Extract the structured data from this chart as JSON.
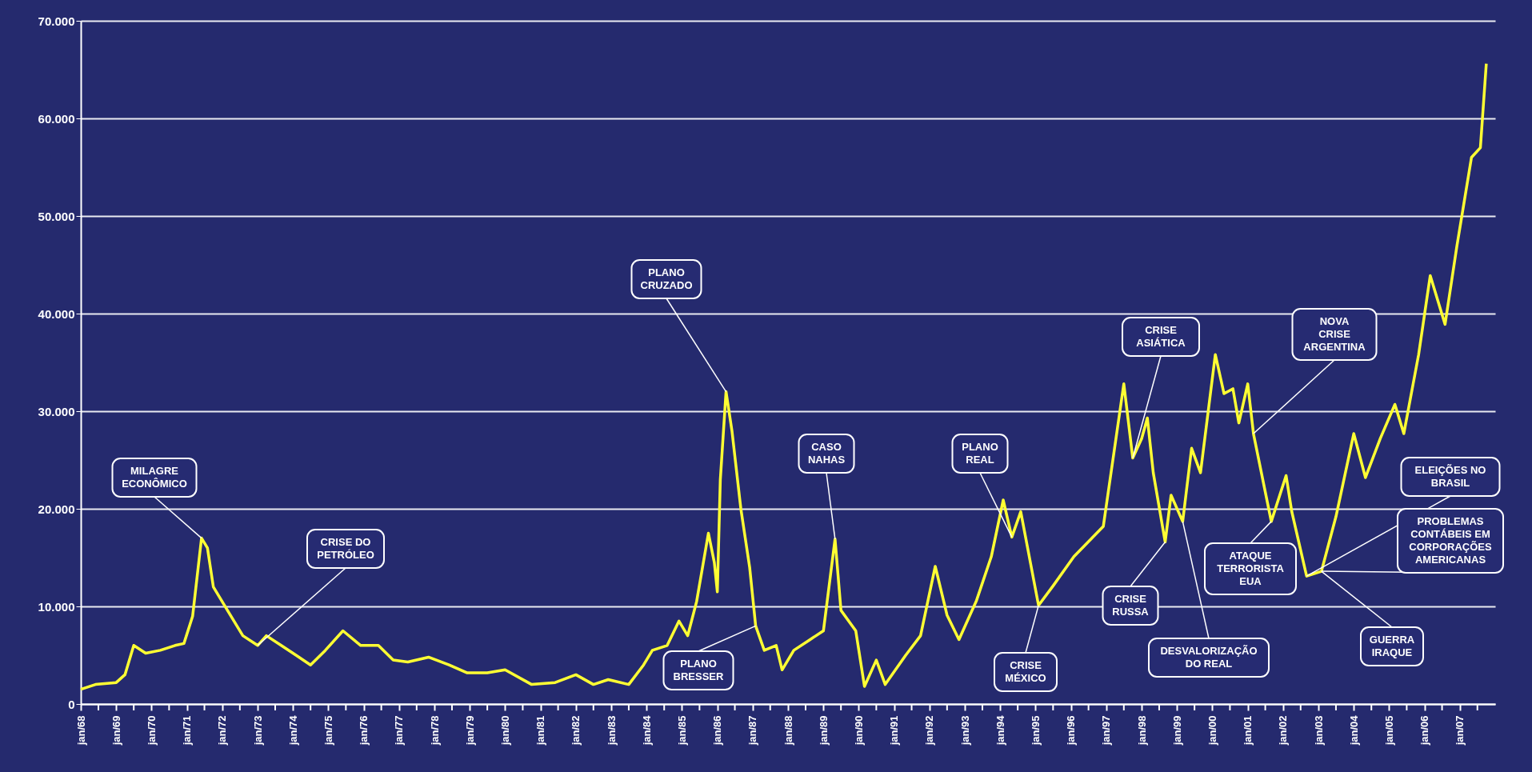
{
  "chart_data": {
    "type": "line",
    "xlim": [
      "1968-01",
      "2008-01"
    ],
    "ylim": [
      0,
      70000
    ],
    "yticks": [
      0,
      {
        "value": 10000,
        "label": "10.000"
      },
      {
        "value": 20000,
        "label": "20.000"
      },
      {
        "value": 30000,
        "label": "30.000"
      },
      {
        "value": 40000,
        "label": "40.000"
      },
      {
        "value": 50000,
        "label": "50.000"
      },
      {
        "value": 60000,
        "label": "60.000"
      },
      {
        "value": 70000,
        "label": "70.000"
      }
    ],
    "xticks": [
      {
        "value": "1968-01",
        "label": "jan/68"
      },
      {
        "value": "1968-07",
        "label": null
      },
      {
        "value": "1969-01",
        "label": "jan/69"
      },
      {
        "value": "1969-07",
        "label": null
      },
      {
        "value": "1970-01",
        "label": "jan/70"
      },
      {
        "value": "1970-07",
        "label": null
      },
      {
        "value": "1971-01",
        "label": "jan/71"
      },
      {
        "value": "1971-07",
        "label": null
      },
      {
        "value": "1972-01",
        "label": "jan/72"
      },
      {
        "value": "1972-07",
        "label": null
      },
      {
        "value": "1973-01",
        "label": "jan/73"
      },
      {
        "value": "1973-07",
        "label": null
      },
      {
        "value": "1974-01",
        "label": "jan/74"
      },
      {
        "value": "1974-07",
        "label": null
      },
      {
        "value": "1975-01",
        "label": "jan/75"
      },
      {
        "value": "1975-07",
        "label": null
      },
      {
        "value": "1976-01",
        "label": "jan/76"
      },
      {
        "value": "1976-07",
        "label": null
      },
      {
        "value": "1977-01",
        "label": "jan/77"
      },
      {
        "value": "1977-07",
        "label": null
      },
      {
        "value": "1978-01",
        "label": "jan/78"
      },
      {
        "value": "1978-07",
        "label": null
      },
      {
        "value": "1979-01",
        "label": "jan/79"
      },
      {
        "value": "1979-07",
        "label": null
      },
      {
        "value": "1980-01",
        "label": "jan/80"
      },
      {
        "value": "1980-07",
        "label": null
      },
      {
        "value": "1981-01",
        "label": "jan/81"
      },
      {
        "value": "1981-07",
        "label": null
      },
      {
        "value": "1982-01",
        "label": "jan/82"
      },
      {
        "value": "1982-07",
        "label": null
      },
      {
        "value": "1983-01",
        "label": "jan/83"
      },
      {
        "value": "1983-07",
        "label": null
      },
      {
        "value": "1984-01",
        "label": "jan/84"
      },
      {
        "value": "1984-07",
        "label": null
      },
      {
        "value": "1985-01",
        "label": "jan/85"
      },
      {
        "value": "1985-07",
        "label": null
      },
      {
        "value": "1986-01",
        "label": "jan/86"
      },
      {
        "value": "1986-07",
        "label": null
      },
      {
        "value": "1987-01",
        "label": "jan/87"
      },
      {
        "value": "1987-07",
        "label": null
      },
      {
        "value": "1988-01",
        "label": "jan/88"
      },
      {
        "value": "1988-07",
        "label": null
      },
      {
        "value": "1989-01",
        "label": "jan/89"
      },
      {
        "value": "1989-07",
        "label": null
      },
      {
        "value": "1990-01",
        "label": "jan/90"
      },
      {
        "value": "1990-07",
        "label": null
      },
      {
        "value": "1991-01",
        "label": "jan/91"
      },
      {
        "value": "1991-07",
        "label": null
      },
      {
        "value": "1992-01",
        "label": "jan/92"
      },
      {
        "value": "1992-07",
        "label": null
      },
      {
        "value": "1993-01",
        "label": "jan/93"
      },
      {
        "value": "1993-07",
        "label": null
      },
      {
        "value": "1994-01",
        "label": "jan/94"
      },
      {
        "value": "1994-07",
        "label": null
      },
      {
        "value": "1995-01",
        "label": "jan/95"
      },
      {
        "value": "1995-07",
        "label": null
      },
      {
        "value": "1996-01",
        "label": "jan/96"
      },
      {
        "value": "1996-07",
        "label": null
      },
      {
        "value": "1997-01",
        "label": "jan/97"
      },
      {
        "value": "1997-07",
        "label": null
      },
      {
        "value": "1998-01",
        "label": "jan/98"
      },
      {
        "value": "1998-07",
        "label": null
      },
      {
        "value": "1999-01",
        "label": "jan/99"
      },
      {
        "value": "1999-07",
        "label": null
      },
      {
        "value": "2000-01",
        "label": "jan/00"
      },
      {
        "value": "2000-07",
        "label": null
      },
      {
        "value": "2001-01",
        "label": "jan/01"
      },
      {
        "value": "2001-07",
        "label": null
      },
      {
        "value": "2002-01",
        "label": "jan/02"
      },
      {
        "value": "2002-07",
        "label": null
      },
      {
        "value": "2003-01",
        "label": "jan/03"
      },
      {
        "value": "2003-07",
        "label": null
      },
      {
        "value": "2004-01",
        "label": "jan/04"
      },
      {
        "value": "2004-07",
        "label": null
      },
      {
        "value": "2005-01",
        "label": "jan/05"
      },
      {
        "value": "2005-07",
        "label": null
      },
      {
        "value": "2006-01",
        "label": "jan/06"
      },
      {
        "value": "2006-07",
        "label": null
      },
      {
        "value": "2007-01",
        "label": "jan/07"
      },
      {
        "value": "2007-07",
        "label": null
      }
    ],
    "grid": "y",
    "line_style": "solid",
    "series": [
      {
        "color": "#ffff33",
        "x": [
          "1968-01",
          "1968-06",
          "1969-01",
          "1969-04",
          "1969-07",
          "1969-11",
          "1970-04",
          "1970-09",
          "1970-12",
          "1971-03",
          "1971-06",
          "1971-08",
          "1971-10",
          "1972-03",
          "1972-08",
          "1973-01",
          "1973-04",
          "1973-09",
          "1974-02",
          "1974-07",
          "1974-12",
          "1975-06",
          "1975-12",
          "1976-06",
          "1976-11",
          "1977-04",
          "1977-11",
          "1978-06",
          "1978-12",
          "1979-07",
          "1980-01",
          "1980-10",
          "1981-06",
          "1982-01",
          "1982-07",
          "1982-12",
          "1983-07",
          "1983-12",
          "1984-03",
          "1984-08",
          "1984-12",
          "1985-03",
          "1985-06",
          "1985-10",
          "1985-12",
          "1986-01",
          "1986-02",
          "1986-04",
          "1986-06",
          "1986-09",
          "1986-12",
          "1987-02",
          "1987-05",
          "1987-09",
          "1987-11",
          "1988-03",
          "1988-08",
          "1989-01",
          "1989-05",
          "1989-07",
          "1989-12",
          "1990-03",
          "1990-07",
          "1990-10",
          "1991-05",
          "1991-10",
          "1992-03",
          "1992-07",
          "1992-11",
          "1993-05",
          "1993-10",
          "1994-02",
          "1994-05",
          "1994-08",
          "1995-02",
          "1995-07",
          "1996-02",
          "1996-12",
          "1997-07",
          "1997-10",
          "1998-01",
          "1998-03",
          "1998-05",
          "1998-09",
          "1998-11",
          "1999-03",
          "1999-06",
          "1999-09",
          "2000-02",
          "2000-05",
          "2000-08",
          "2000-10",
          "2001-01",
          "2001-03",
          "2001-09",
          "2002-02",
          "2002-04",
          "2002-09",
          "2003-02",
          "2003-07",
          "2004-01",
          "2004-05",
          "2004-10",
          "2005-03",
          "2005-06",
          "2005-11",
          "2006-03",
          "2006-08",
          "2006-12",
          "2007-05",
          "2007-08",
          "2007-10"
        ],
        "values": [
          1500,
          2000,
          2200,
          3000,
          6000,
          5200,
          5500,
          6000,
          6200,
          9000,
          17000,
          16000,
          12000,
          9500,
          7000,
          6000,
          7000,
          6000,
          5000,
          4000,
          5500,
          7500,
          6000,
          6000,
          4500,
          4300,
          4800,
          4000,
          3200,
          3200,
          3500,
          2000,
          2200,
          3000,
          2000,
          2500,
          2000,
          4000,
          5500,
          6000,
          8500,
          7000,
          10500,
          17500,
          14500,
          11500,
          23000,
          32000,
          28000,
          20000,
          14000,
          8000,
          5500,
          6000,
          3500,
          5500,
          6500,
          7500,
          16900,
          9600,
          7500,
          1800,
          4500,
          2000,
          5000,
          7000,
          14100,
          9100,
          6600,
          10600,
          15100,
          20900,
          17100,
          19700,
          10100,
          12100,
          15100,
          18200,
          32800,
          25200,
          27200,
          29300,
          23700,
          16600,
          21400,
          18700,
          26200,
          23700,
          35800,
          31800,
          32300,
          28800,
          32800,
          27700,
          18700,
          23400,
          19700,
          13100,
          13600,
          19200,
          27700,
          23200,
          27200,
          30700,
          27700,
          35800,
          43900,
          38900,
          46900,
          56000,
          57000,
          65600
        ]
      }
    ],
    "annotations": [
      {
        "text": "MILAGRE\nECONÔMICO",
        "x": "1971-06",
        "y": 17000
      },
      {
        "text": "CRISE DO\nPETRÓLEO",
        "x": "1973-01",
        "y": 6000
      },
      {
        "text": "PLANO\nCRUZADO",
        "x": "1986-04",
        "y": 32000
      },
      {
        "text": "PLANO\nBRESSER",
        "x": "1987-02",
        "y": 8000
      },
      {
        "text": "CASO\nNAHAS",
        "x": "1989-05",
        "y": 16900
      },
      {
        "text": "PLANO\nREAL",
        "x": "1994-05",
        "y": 17100
      },
      {
        "text": "CRISE\nMÉXICO",
        "x": "1995-02",
        "y": 10100
      },
      {
        "text": "CRISE\nASIÁTICA",
        "x": "1997-10",
        "y": 25200
      },
      {
        "text": "NOVA\nCRISE\nARGENTINA",
        "x": "2001-03",
        "y": 27700
      },
      {
        "text": "CRISE\nRUSSA",
        "x": "1998-09",
        "y": 16600
      },
      {
        "text": "DESVALORIZAÇÃO\nDO REAL",
        "x": "1999-03",
        "y": 18700
      },
      {
        "text": "ATAQUE\nTERRORISTA\nEUA",
        "x": "2001-09",
        "y": 18700
      },
      {
        "text": "GUERRA\nIRAQUE",
        "x": "2003-02",
        "y": 13600
      },
      {
        "text": "ELEIÇÕES NO\nBRASIL",
        "x": "2002-09",
        "y": 13100
      },
      {
        "text": "PROBLEMAS\nCONTÁBEIS EM\nCORPORAÇÕES\nAMERICANAS",
        "x": "2003-02",
        "y": 13600
      }
    ]
  }
}
